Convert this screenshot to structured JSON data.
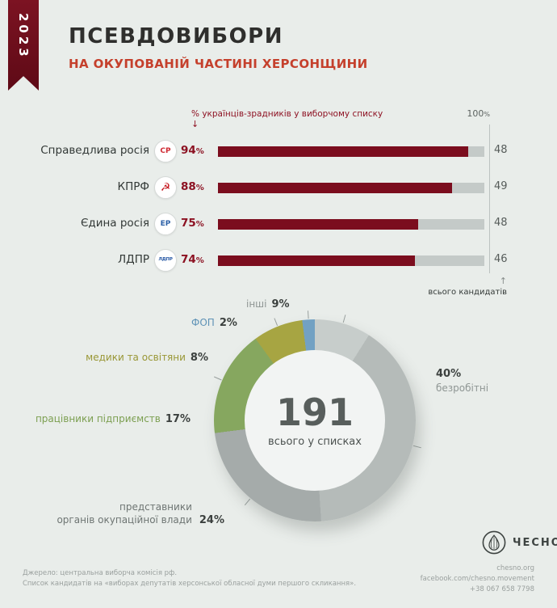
{
  "ribbon": {
    "year": "2023"
  },
  "header": {
    "title": "ПСЕВДОВИБОРИ",
    "subtitle": "НА ОКУПОВАНІЙ ЧАСТИНІ ХЕРСОНЩИНИ"
  },
  "chart_data": [
    {
      "type": "bar",
      "title": "% українців-зрадників у виборчому списку",
      "title_arrow": "↓",
      "axis_max": "100",
      "axis_max_unit": "%",
      "pct_unit": "%",
      "xlim": [
        0,
        100
      ],
      "categories": [
        "Справедлива росія",
        "КПРФ",
        "Єдина росія",
        "ЛДПР"
      ],
      "values": [
        94,
        88,
        75,
        74
      ],
      "totals": [
        48,
        49,
        48,
        46
      ],
      "bar_color": "#7b0d1e",
      "track_color": "#c4cac8",
      "rows": [
        {
          "party": "Справедлива росія",
          "pct": 94,
          "total": 48,
          "logo_text": "СР",
          "logo_color": "#cf2a33"
        },
        {
          "party": "КПРФ",
          "pct": 88,
          "total": 49,
          "logo_text": "☭",
          "logo_color": "#c5161d"
        },
        {
          "party": "Єдина росія",
          "pct": 75,
          "total": 48,
          "logo_text": "ЕР",
          "logo_color": "#2e62a8"
        },
        {
          "party": "ЛДПР",
          "pct": 74,
          "total": 46,
          "logo_text": "ЛДПР",
          "logo_color": "#2456a4"
        }
      ],
      "totals_arrow": "↑",
      "totals_label": "всього кандидатів"
    },
    {
      "type": "pie",
      "style": "donut",
      "center_value": "191",
      "center_label": "всього у списках",
      "unit": "%",
      "segments": [
        {
          "label": "інші",
          "value": 9,
          "color": "#c7cdcb",
          "label_color": "#8f9694"
        },
        {
          "label": "безробітні",
          "value": 40,
          "color": "#b5bbb9",
          "label_color": "#8f9694"
        },
        {
          "label": "представники органів окупаційної влади",
          "value": 24,
          "color": "#a5abaa",
          "label_color": "#6e7573",
          "label_lines": [
            "представники",
            "органів окупаційної влади"
          ]
        },
        {
          "label": "працівники підприємств",
          "value": 17,
          "color": "#86a75f",
          "label_color": "#7c9f51"
        },
        {
          "label": "медики та освітяни",
          "value": 8,
          "color": "#a7a542",
          "label_color": "#999736"
        },
        {
          "label": "ФОП",
          "value": 2,
          "color": "#72a1c3",
          "label_color": "#5e92b6"
        }
      ]
    }
  ],
  "footer": {
    "source_line1": "Джерело: центральна виборча комісія рф.",
    "source_line2": "Список кандидатів на «виборах депутатів херсонської обласної думи першого скликання».",
    "site": "chesno.org",
    "facebook": "facebook.com/chesno.movement",
    "phone": "+38 067 658 7798"
  },
  "brand": {
    "name": "ЧЕСНО"
  }
}
